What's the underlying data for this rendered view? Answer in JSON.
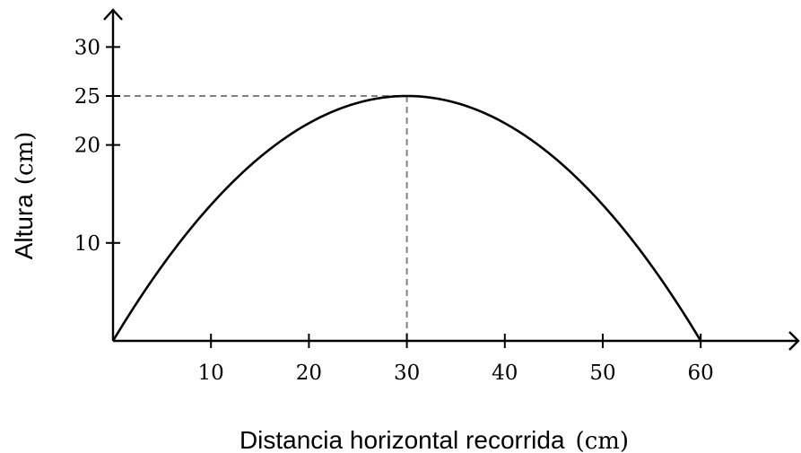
{
  "chart_data": {
    "type": "line",
    "title": "",
    "xlabel": {
      "text": "Distancia horizontal recorrida",
      "unit": "(cm)"
    },
    "ylabel": {
      "text": "Altura",
      "unit": "(cm)"
    },
    "xlim": [
      0,
      70
    ],
    "ylim": [
      0,
      32
    ],
    "xticks": [
      10,
      20,
      30,
      40,
      50,
      60
    ],
    "yticks": [
      10,
      20,
      25,
      30
    ],
    "grid": false,
    "series": [
      {
        "shape": "parabola",
        "x": [
          0,
          5,
          10,
          15,
          20,
          25,
          30,
          35,
          40,
          45,
          50,
          55,
          60
        ],
        "y": [
          0,
          7.64,
          13.89,
          18.75,
          22.22,
          24.31,
          25,
          24.31,
          22.22,
          18.75,
          13.89,
          7.64,
          0
        ]
      }
    ],
    "annotations": [
      {
        "type": "dashed-guide",
        "x": 30,
        "y": 25
      }
    ]
  }
}
